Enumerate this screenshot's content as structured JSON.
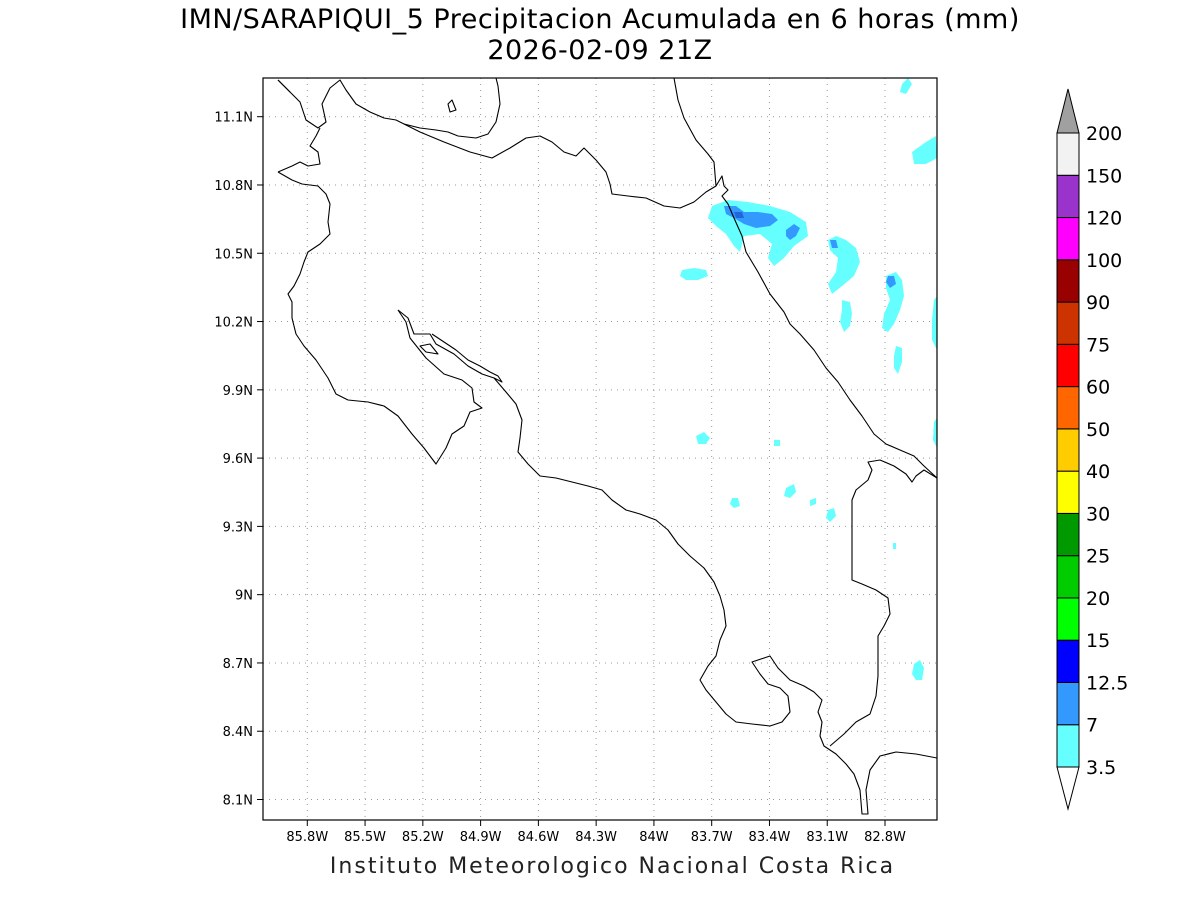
{
  "title": {
    "line1": "IMN/SARAPIQUI_5 Precipitacion Acumulada en 6 horas (mm)",
    "line2": "2026-02-09 21Z"
  },
  "footer": "Instituto Meteorologico Nacional Costa Rica",
  "map": {
    "lon_range": [
      -86.03,
      -82.53
    ],
    "lat_range": [
      8.01,
      11.27
    ],
    "lon_ticks": [
      "85.8W",
      "85.5W",
      "85.2W",
      "84.9W",
      "84.6W",
      "84.3W",
      "84W",
      "83.7W",
      "83.4W",
      "83.1W",
      "82.8W"
    ],
    "lat_ticks": [
      "11.1N",
      "10.8N",
      "10.5N",
      "10.2N",
      "9.9N",
      "9.6N",
      "9.3N",
      "9N",
      "8.7N",
      "8.4N",
      "8.1N"
    ],
    "grid": "dotted"
  },
  "colorbar": {
    "labels": [
      "3.5",
      "7",
      "12.5",
      "15",
      "20",
      "25",
      "30",
      "40",
      "50",
      "60",
      "75",
      "90",
      "100",
      "120",
      "150",
      "200"
    ],
    "colors": [
      "#66ffff",
      "#3399ff",
      "#0000ff",
      "#00ff00",
      "#00cc00",
      "#009900",
      "#ffff00",
      "#ffcc00",
      "#ff6600",
      "#ff0000",
      "#cc3300",
      "#990000",
      "#ff00ff",
      "#9933cc",
      "#f2f2f2"
    ],
    "top_arrow_color": "#a0a0a0",
    "bottom_arrow_color": "#ffffff"
  },
  "precip_colors": {
    "light": "#66ffff",
    "medium": "#3399ff"
  }
}
